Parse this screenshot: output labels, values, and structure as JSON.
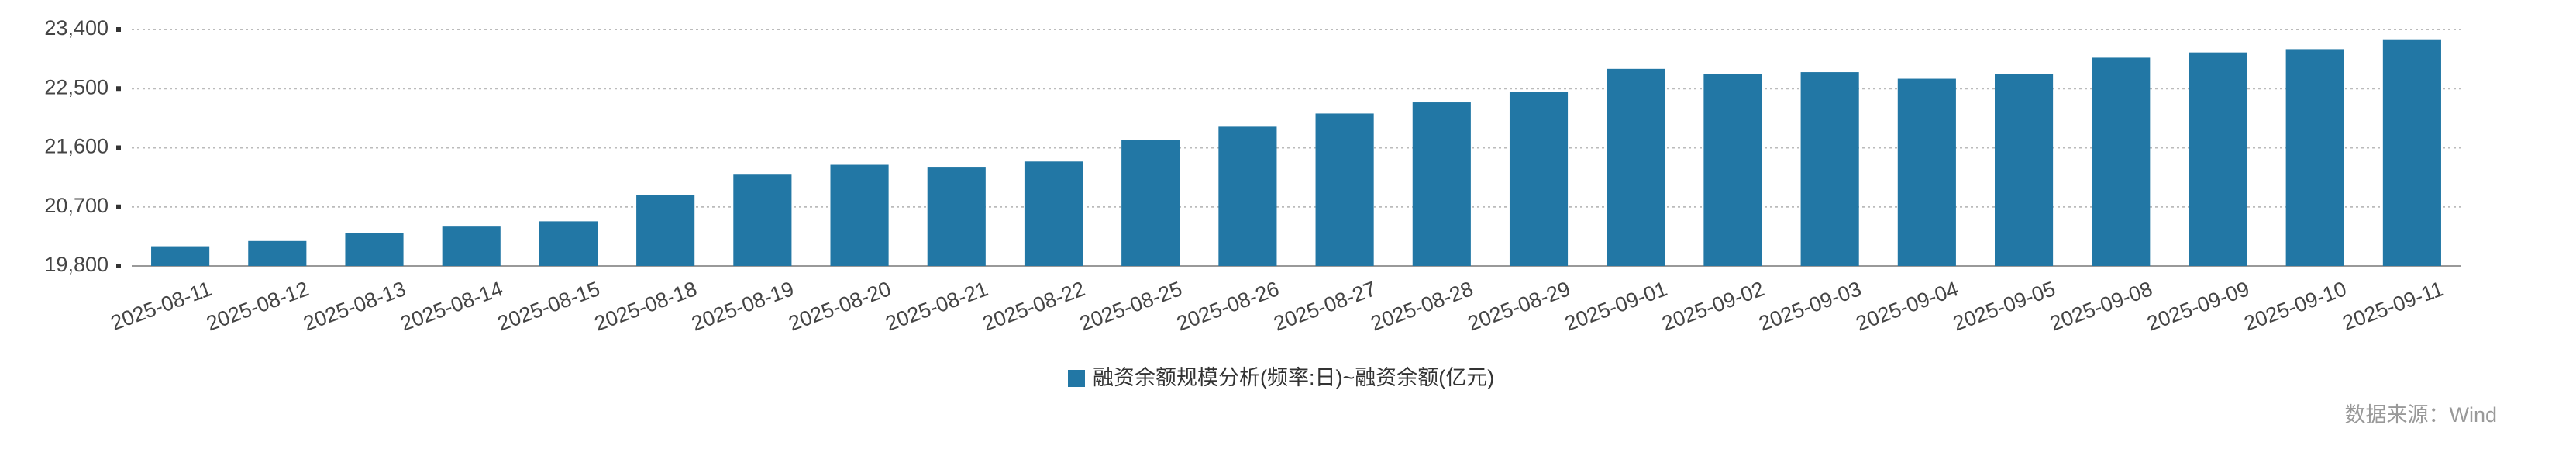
{
  "chart_data": {
    "type": "bar",
    "categories": [
      "2025-08-11",
      "2025-08-12",
      "2025-08-13",
      "2025-08-14",
      "2025-08-15",
      "2025-08-18",
      "2025-08-19",
      "2025-08-20",
      "2025-08-21",
      "2025-08-22",
      "2025-08-25",
      "2025-08-26",
      "2025-08-27",
      "2025-08-28",
      "2025-08-29",
      "2025-09-01",
      "2025-09-02",
      "2025-09-03",
      "2025-09-04",
      "2025-09-05",
      "2025-09-08",
      "2025-09-09",
      "2025-09-10",
      "2025-09-11"
    ],
    "series": [
      {
        "name": "融资余额规模分析(频率:日)~融资余额(亿元)",
        "color": "#2277a5",
        "values": [
          20100,
          20180,
          20300,
          20400,
          20480,
          20880,
          21190,
          21340,
          21310,
          21390,
          21720,
          21920,
          22120,
          22290,
          22450,
          22800,
          22720,
          22750,
          22650,
          22720,
          22970,
          23050,
          23100,
          23250
        ]
      }
    ],
    "ylim": [
      19800,
      23400
    ],
    "yticks": [
      {
        "value": 19800,
        "label": "19,800"
      },
      {
        "value": 20700,
        "label": "20,700"
      },
      {
        "value": 21600,
        "label": "21,600"
      },
      {
        "value": 22500,
        "label": "22,500"
      },
      {
        "value": 23400,
        "label": "23,400"
      }
    ],
    "grid": true,
    "legend": "bottom",
    "source": "数据来源：Wind"
  }
}
